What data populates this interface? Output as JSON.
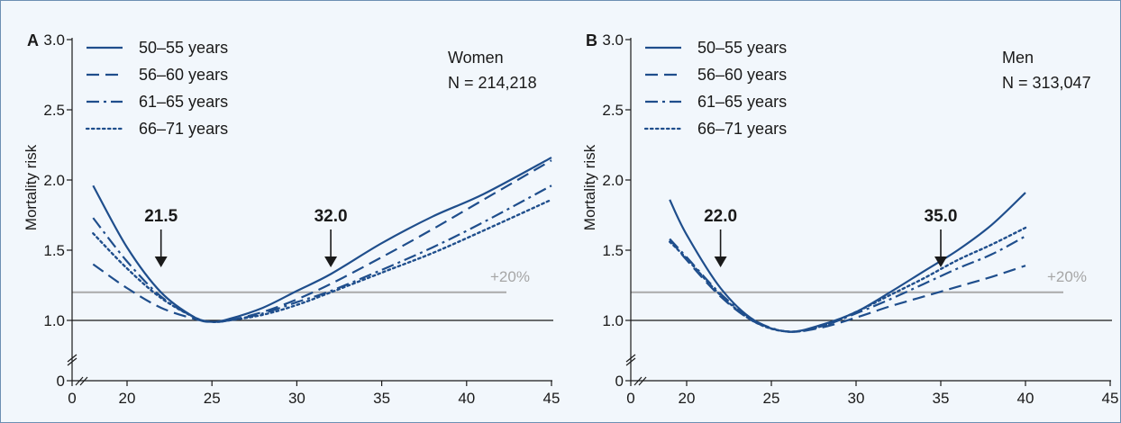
{
  "colors": {
    "series": "#1f4e8c",
    "reference": "#aaaaaa",
    "baseline": "#1a1a1a",
    "background": "#f2f7fc"
  },
  "ref_label": "+20%",
  "legend": [
    {
      "label": "50–55 years",
      "style": "solid"
    },
    {
      "label": "56–60 years",
      "style": "dashed"
    },
    {
      "label": "61–65 years",
      "style": "dash-dot"
    },
    {
      "label": "66–71 years",
      "style": "dotted"
    }
  ],
  "chart_data": [
    {
      "type": "line",
      "panel": "A",
      "ylabel": "Mortality risk",
      "xlim": [
        0,
        45
      ],
      "ylim": [
        0,
        3.0
      ],
      "xticks": [
        "0",
        "20",
        "25",
        "30",
        "35",
        "40",
        "45"
      ],
      "yticks": [
        "0",
        "1.0",
        "1.5",
        "2.0",
        "2.5",
        "3.0"
      ],
      "axis_break": true,
      "group": "Women",
      "n": "N = 214,218",
      "reference_line": 1.2,
      "baseline": 1.0,
      "annotations": [
        {
          "label": "21.5",
          "x": 22
        },
        {
          "label": "32.0",
          "x": 32
        }
      ],
      "series": [
        {
          "name": "50–55 years",
          "x": [
            18,
            20,
            22,
            24,
            25,
            26,
            28,
            30,
            32,
            35,
            38,
            41,
            45
          ],
          "y": [
            1.96,
            1.52,
            1.2,
            1.02,
            0.99,
            1.01,
            1.09,
            1.21,
            1.33,
            1.55,
            1.74,
            1.9,
            2.16
          ]
        },
        {
          "name": "56–60 years",
          "x": [
            18,
            20,
            22,
            24,
            25,
            26,
            28,
            30,
            32,
            35,
            38,
            41,
            45
          ],
          "y": [
            1.4,
            1.23,
            1.09,
            1.01,
            0.99,
            1.0,
            1.06,
            1.15,
            1.26,
            1.45,
            1.65,
            1.86,
            2.14
          ]
        },
        {
          "name": "61–65 years",
          "x": [
            18,
            20,
            22,
            24,
            25,
            26,
            28,
            30,
            32,
            35,
            38,
            41,
            45
          ],
          "y": [
            1.73,
            1.42,
            1.17,
            1.02,
            0.99,
            1.0,
            1.05,
            1.13,
            1.21,
            1.36,
            1.52,
            1.7,
            1.96
          ]
        },
        {
          "name": "66–71 years",
          "x": [
            18,
            20,
            22,
            24,
            25,
            26,
            28,
            30,
            32,
            35,
            38,
            41,
            45
          ],
          "y": [
            1.62,
            1.37,
            1.16,
            1.02,
            0.99,
            1.0,
            1.04,
            1.11,
            1.2,
            1.34,
            1.48,
            1.64,
            1.86
          ]
        }
      ]
    },
    {
      "type": "line",
      "panel": "B",
      "ylabel": "Mortality risk",
      "xlim": [
        0,
        45
      ],
      "ylim": [
        0,
        3.0
      ],
      "xticks": [
        "0",
        "20",
        "25",
        "30",
        "35",
        "40",
        "45"
      ],
      "yticks": [
        "0",
        "1.0",
        "1.5",
        "2.0",
        "2.5",
        "3.0"
      ],
      "axis_break": true,
      "group": "Men",
      "n": "N = 313,047",
      "reference_line": 1.2,
      "baseline": 1.0,
      "annotations": [
        {
          "label": "22.0",
          "x": 22
        },
        {
          "label": "35.0",
          "x": 35
        }
      ],
      "series": [
        {
          "name": "50–55 years",
          "x": [
            19,
            20,
            22,
            24,
            26,
            28,
            30,
            32,
            34,
            36,
            38,
            40
          ],
          "y": [
            1.86,
            1.61,
            1.23,
            1.0,
            0.92,
            0.97,
            1.06,
            1.2,
            1.35,
            1.5,
            1.68,
            1.91
          ]
        },
        {
          "name": "56–60 years",
          "x": [
            19,
            20,
            22,
            24,
            26,
            28,
            30,
            32,
            34,
            36,
            38,
            40
          ],
          "y": [
            1.58,
            1.43,
            1.17,
            0.99,
            0.92,
            0.95,
            1.02,
            1.1,
            1.17,
            1.24,
            1.31,
            1.39
          ]
        },
        {
          "name": "61–65 years",
          "x": [
            19,
            20,
            22,
            24,
            26,
            28,
            30,
            32,
            34,
            36,
            38,
            40
          ],
          "y": [
            1.58,
            1.45,
            1.19,
            1.0,
            0.92,
            0.96,
            1.05,
            1.15,
            1.26,
            1.37,
            1.47,
            1.6
          ]
        },
        {
          "name": "66–71 years",
          "x": [
            19,
            20,
            22,
            24,
            26,
            28,
            30,
            32,
            34,
            36,
            38,
            40
          ],
          "y": [
            1.56,
            1.44,
            1.18,
            0.99,
            0.92,
            0.96,
            1.06,
            1.18,
            1.3,
            1.43,
            1.54,
            1.66
          ]
        }
      ]
    }
  ]
}
